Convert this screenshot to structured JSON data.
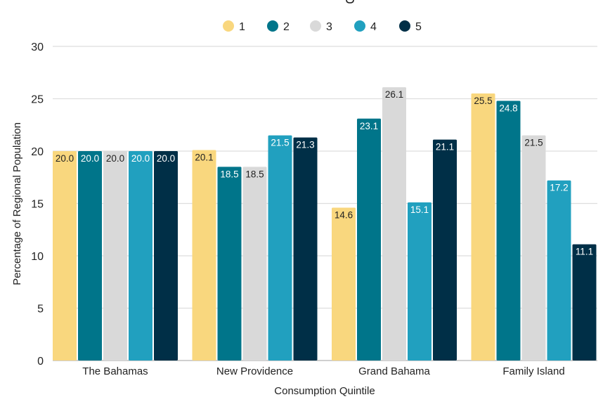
{
  "chart_data": {
    "type": "bar",
    "title": "",
    "xlabel": "Consumption Quintile",
    "ylabel": "Percentage of Regional Population",
    "ylim": [
      0,
      30
    ],
    "yticks": [
      0,
      5,
      10,
      15,
      20,
      25,
      30
    ],
    "grid": true,
    "legend_position": "top",
    "categories": [
      "The Bahamas",
      "New Providence",
      "Grand Bahama",
      "Family Island"
    ],
    "series": [
      {
        "name": "1",
        "color": "#F9D77E",
        "label_color": "#222222",
        "values": [
          20.0,
          20.1,
          14.6,
          25.5
        ]
      },
      {
        "name": "2",
        "color": "#00758A",
        "label_color": "#ffffff",
        "values": [
          20.0,
          18.5,
          23.1,
          24.8
        ]
      },
      {
        "name": "3",
        "color": "#D9D9D9",
        "label_color": "#222222",
        "values": [
          20.0,
          18.5,
          26.1,
          21.5
        ]
      },
      {
        "name": "4",
        "color": "#21A0BF",
        "label_color": "#ffffff",
        "values": [
          20.0,
          21.5,
          15.1,
          17.2
        ]
      },
      {
        "name": "5",
        "color": "#002F47",
        "label_color": "#ffffff",
        "values": [
          20.0,
          21.3,
          21.1,
          11.1
        ]
      }
    ],
    "data_labels": [
      [
        "20.0",
        "20.1",
        "14.6",
        "25.5"
      ],
      [
        "20.0",
        "18.5",
        "23.1",
        "24.8"
      ],
      [
        "20.0",
        "18.5",
        "26.1",
        "21.5"
      ],
      [
        "20.0",
        "21.5",
        "15.1",
        "17.2"
      ],
      [
        "20.0",
        "21.3",
        "21.1",
        "11.1"
      ]
    ]
  }
}
